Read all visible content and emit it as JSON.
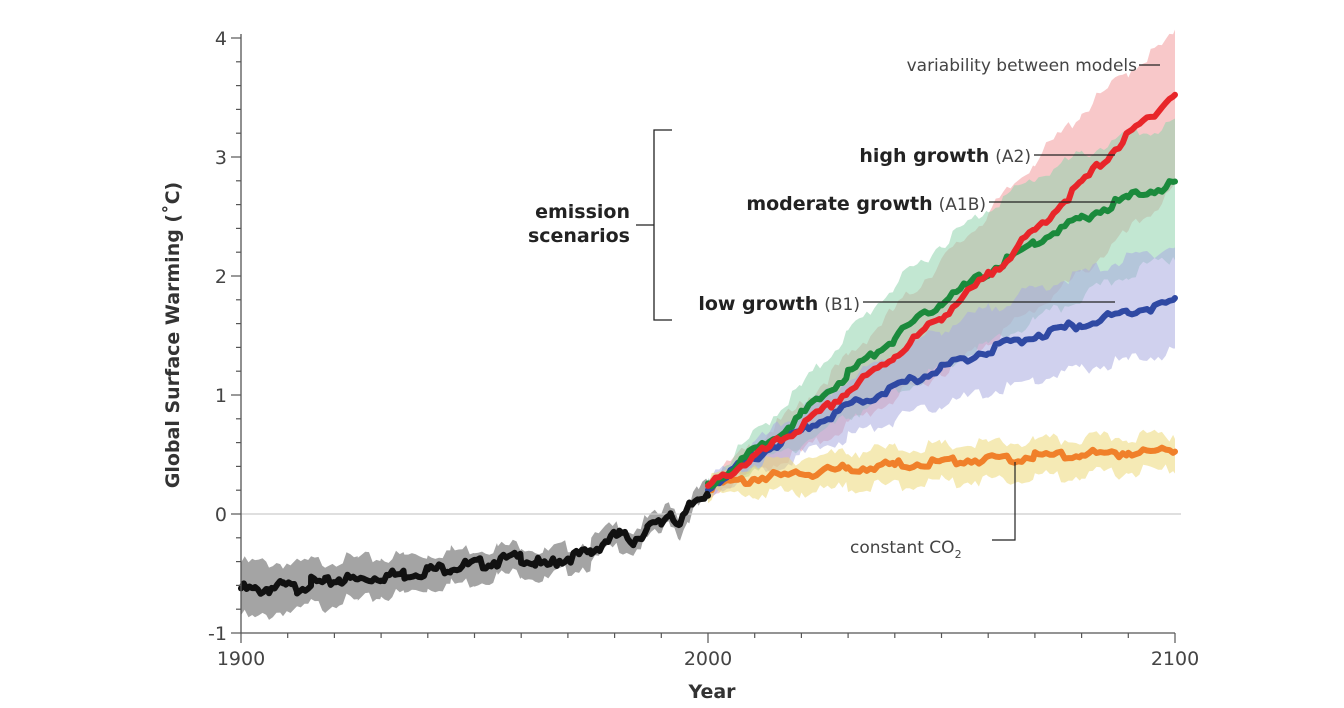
{
  "chart_data": {
    "type": "line",
    "xlabel": "Year",
    "ylabel": "Global Surface Warming (˚C)",
    "xlim": [
      1900,
      2100
    ],
    "ylim": [
      -1,
      4
    ],
    "x_ticks": [
      1900,
      2000,
      2100
    ],
    "y_ticks": [
      -1,
      0,
      1,
      2,
      3,
      4
    ],
    "grid": false,
    "baseline_y": 0,
    "series": [
      {
        "name": "",
        "color": "#111111",
        "band_color": "#a4a4a4",
        "x": [
          1900,
          1903,
          1906,
          1909,
          1912,
          1915,
          1918,
          1921,
          1925,
          1930,
          1935,
          1940,
          1945,
          1950,
          1955,
          1960,
          1963,
          1965,
          1967,
          1970,
          1975,
          1978,
          1981,
          1984,
          1987,
          1990,
          1992,
          1994,
          1996,
          1998,
          2000
        ],
        "y": [
          -0.6,
          -0.62,
          -0.6,
          -0.58,
          -0.6,
          -0.55,
          -0.56,
          -0.52,
          -0.53,
          -0.5,
          -0.48,
          -0.45,
          -0.42,
          -0.4,
          -0.37,
          -0.34,
          -0.38,
          -0.42,
          -0.38,
          -0.34,
          -0.3,
          -0.2,
          -0.15,
          -0.2,
          -0.1,
          -0.05,
          0.05,
          -0.08,
          0.08,
          0.16,
          0.22
        ],
        "band_width": [
          0.22,
          0.24,
          0.22,
          0.2,
          0.2,
          0.18,
          0.19,
          0.17,
          0.18,
          0.16,
          0.16,
          0.14,
          0.14,
          0.14,
          0.12,
          0.12,
          0.12,
          0.12,
          0.11,
          0.1,
          0.1,
          0.09,
          0.09,
          0.09,
          0.08,
          0.08,
          0.08,
          0.08,
          0.07,
          0.07,
          0.07
        ]
      },
      {
        "name": "high growth (A2)",
        "color": "#e8262a",
        "band_color": "#f29a9c",
        "x": [
          2000,
          2010,
          2020,
          2030,
          2040,
          2050,
          2060,
          2070,
          2080,
          2090,
          2100
        ],
        "y": [
          0.25,
          0.5,
          0.75,
          1.05,
          1.35,
          1.68,
          2.02,
          2.4,
          2.8,
          3.2,
          3.55
        ],
        "band_low": [
          0.2,
          0.38,
          0.55,
          0.78,
          1.0,
          1.22,
          1.48,
          1.75,
          2.05,
          2.4,
          2.75
        ],
        "band_high": [
          0.3,
          0.62,
          0.95,
          1.35,
          1.75,
          2.15,
          2.55,
          3.0,
          3.4,
          3.75,
          4.05
        ]
      },
      {
        "name": "moderate growth (A1B)",
        "color": "#1b8a3c",
        "band_color": "#8fd3ad",
        "x": [
          2000,
          2010,
          2020,
          2030,
          2040,
          2050,
          2060,
          2070,
          2080,
          2090,
          2100
        ],
        "y": [
          0.25,
          0.55,
          0.85,
          1.2,
          1.5,
          1.8,
          2.05,
          2.3,
          2.5,
          2.68,
          2.8
        ],
        "band_low": [
          0.2,
          0.42,
          0.62,
          0.85,
          1.05,
          1.25,
          1.45,
          1.65,
          1.85,
          2.05,
          2.2
        ],
        "band_high": [
          0.3,
          0.7,
          1.1,
          1.55,
          1.95,
          2.3,
          2.6,
          2.85,
          3.05,
          3.2,
          3.3
        ]
      },
      {
        "name": "low growth (B1)",
        "color": "#2f49a3",
        "band_color": "#a9ace0",
        "x": [
          2000,
          2010,
          2020,
          2030,
          2040,
          2050,
          2060,
          2070,
          2080,
          2090,
          2100
        ],
        "y": [
          0.25,
          0.5,
          0.72,
          0.92,
          1.08,
          1.25,
          1.4,
          1.52,
          1.62,
          1.72,
          1.8
        ],
        "band_low": [
          0.2,
          0.38,
          0.52,
          0.68,
          0.82,
          0.95,
          1.05,
          1.15,
          1.25,
          1.32,
          1.4
        ],
        "band_high": [
          0.3,
          0.62,
          0.9,
          1.15,
          1.38,
          1.58,
          1.75,
          1.92,
          2.05,
          2.18,
          2.28
        ]
      },
      {
        "name": "constant CO2",
        "color": "#f0802a",
        "band_color": "#ecd979",
        "x": [
          2000,
          2010,
          2020,
          2030,
          2040,
          2050,
          2060,
          2070,
          2080,
          2090,
          2100
        ],
        "y": [
          0.25,
          0.32,
          0.36,
          0.4,
          0.43,
          0.46,
          0.48,
          0.5,
          0.52,
          0.54,
          0.55
        ],
        "band_low": [
          0.18,
          0.2,
          0.22,
          0.25,
          0.27,
          0.3,
          0.32,
          0.34,
          0.36,
          0.38,
          0.4
        ],
        "band_high": [
          0.32,
          0.45,
          0.5,
          0.55,
          0.58,
          0.6,
          0.62,
          0.64,
          0.66,
          0.68,
          0.7
        ]
      }
    ],
    "annotations": {
      "variability": "variability between models",
      "emission_line1": "emission",
      "emission_line2": "scenarios",
      "a2_bold": "high growth",
      "a2_code": "(A2)",
      "a1b_bold": "moderate growth",
      "a1b_code": "(A1B)",
      "b1_bold": "low growth",
      "b1_code": "(B1)",
      "co2_main": "constant CO",
      "co2_sub": "2"
    }
  },
  "colors": {
    "axis": "#555555",
    "baseline": "#cccccc",
    "leader": "#222222"
  }
}
